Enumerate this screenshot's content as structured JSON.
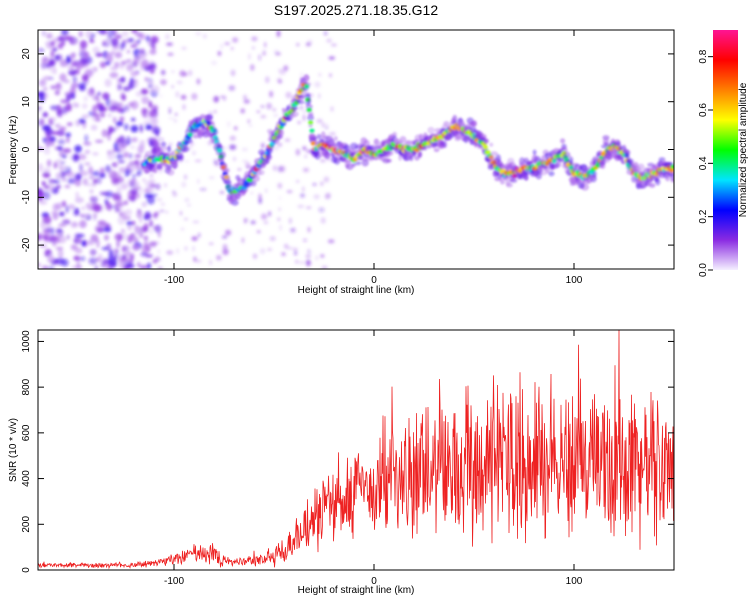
{
  "title": "S197.2025.271.18.35.G12",
  "chart_data": [
    {
      "type": "heatmap",
      "xlabel": "Height of straight line (km)",
      "ylabel": "Frequency (Hz)",
      "xlim": [
        -168,
        150
      ],
      "ylim": [
        -25,
        25
      ],
      "xticks": [
        -100,
        0,
        100
      ],
      "xtick_labels": [
        "-100",
        "0",
        "100"
      ],
      "yticks": [
        -20,
        -10,
        0,
        10,
        20
      ],
      "ytick_labels": [
        "-20",
        "-10",
        "0",
        "10",
        "20"
      ],
      "ridge": {
        "x": [
          -115,
          -110,
          -100,
          -95,
          -90,
          -85,
          -80,
          -72,
          -65,
          -60,
          -55,
          -50,
          -45,
          -40,
          -37,
          -34,
          -30,
          -25,
          -20,
          -15,
          -10,
          -5,
          0,
          5,
          10,
          15,
          20,
          25,
          30,
          35,
          40,
          45,
          50,
          55,
          60,
          65,
          70,
          75,
          80,
          85,
          90,
          95,
          100,
          105,
          110,
          115,
          120,
          125,
          130,
          135,
          140,
          145,
          150
        ],
        "y": [
          -3,
          -2,
          -2,
          1,
          5,
          6,
          4,
          -9,
          -8,
          -5,
          -2,
          2,
          6,
          9,
          12,
          14,
          0,
          1,
          0,
          -1,
          -2,
          0,
          -1,
          0,
          1,
          0,
          0,
          1,
          2,
          3,
          5,
          4,
          3,
          1,
          -3,
          -5,
          -5,
          -4,
          -4,
          -3,
          -2,
          -1,
          -5,
          -6,
          -4,
          -1,
          1,
          -1,
          -5,
          -6,
          -5,
          -4,
          -4
        ]
      },
      "colorbar": {
        "label": "Normalized spectral amplitude",
        "range": [
          0,
          0.9
        ],
        "ticks": [
          0,
          0.2,
          0.4,
          0.6,
          0.8
        ],
        "tick_labels": [
          "0.0",
          "0.2",
          "0.4",
          "0.6",
          "0.8"
        ],
        "colors": [
          "#f5f0ff",
          "#8a2be2",
          "#0000ff",
          "#00e5ff",
          "#00ff00",
          "#ffff00",
          "#ff8000",
          "#ff0000",
          "#ff1493"
        ]
      }
    },
    {
      "type": "line",
      "xlabel": "Height of straight line (km)",
      "ylabel": "SNR (10 * v/v)",
      "xlim": [
        -168,
        150
      ],
      "ylim": [
        0,
        1050
      ],
      "xticks": [
        -100,
        0,
        100
      ],
      "xtick_labels": [
        "-100",
        "0",
        "100"
      ],
      "yticks": [
        0,
        200,
        400,
        600,
        800,
        1000
      ],
      "ytick_labels": [
        "0",
        "200",
        "400",
        "600",
        "800",
        "1000"
      ],
      "series": [
        {
          "name": "SNR",
          "color": "#ee2222",
          "envelope": {
            "x": [
              -168,
              -140,
              -120,
              -110,
              -100,
              -90,
              -80,
              -75,
              -70,
              -60,
              -50,
              -40,
              -30,
              -20,
              -10,
              0,
              10,
              20,
              30,
              40,
              50,
              60,
              70,
              80,
              90,
              100,
              110,
              120,
              130,
              140,
              150
            ],
            "mean": [
              20,
              20,
              22,
              30,
              50,
              70,
              80,
              40,
              30,
              40,
              60,
              120,
              220,
              300,
              340,
              360,
              380,
              400,
              420,
              450,
              470,
              480,
              490,
              480,
              480,
              470,
              460,
              460,
              460,
              460,
              470
            ],
            "spread": [
              12,
              12,
              14,
              20,
              35,
              50,
              70,
              30,
              20,
              30,
              60,
              100,
              160,
              200,
              230,
              250,
              280,
              320,
              330,
              360,
              380,
              400,
              420,
              420,
              420,
              420,
              400,
              400,
              380,
              380,
              380
            ]
          }
        }
      ]
    }
  ]
}
